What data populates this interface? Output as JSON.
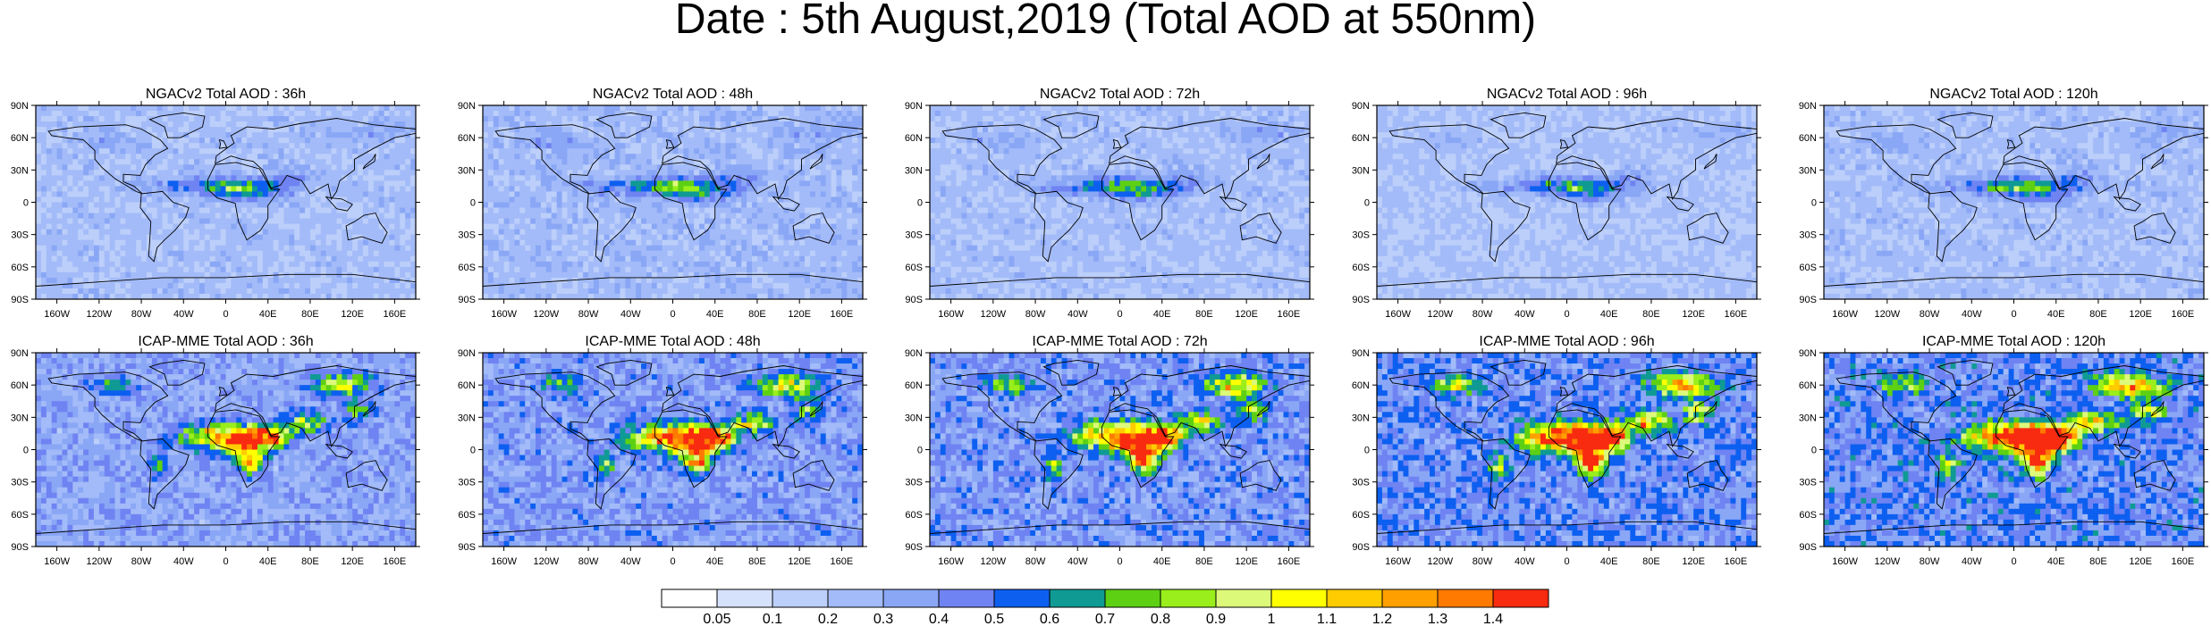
{
  "title": "Date : 5th August,2019 (Total AOD at 550nm)",
  "rows": [
    {
      "model": "NGACv2",
      "panels": [
        {
          "title": "NGACv2 Total AOD : 36h",
          "lead": "36h",
          "intensity": 0.55
        },
        {
          "title": "NGACv2 Total AOD : 48h",
          "lead": "48h",
          "intensity": 0.6
        },
        {
          "title": "NGACv2 Total AOD : 72h",
          "lead": "72h",
          "intensity": 0.55
        },
        {
          "title": "NGACv2 Total AOD : 96h",
          "lead": "96h",
          "intensity": 0.5
        },
        {
          "title": "NGACv2 Total AOD : 120h",
          "lead": "120h",
          "intensity": 0.55
        }
      ]
    },
    {
      "model": "ICAP-MME",
      "panels": [
        {
          "title": "ICAP-MME Total AOD : 36h",
          "lead": "36h",
          "intensity": 0.85
        },
        {
          "title": "ICAP-MME Total AOD : 48h",
          "lead": "48h",
          "intensity": 0.95
        },
        {
          "title": "ICAP-MME Total AOD : 72h",
          "lead": "72h",
          "intensity": 1.0
        },
        {
          "title": "ICAP-MME Total AOD : 96h",
          "lead": "96h",
          "intensity": 1.1
        },
        {
          "title": "ICAP-MME Total AOD : 120h",
          "lead": "120h",
          "intensity": 1.15
        }
      ]
    }
  ],
  "lat_ticks": [
    "90N",
    "60N",
    "30N",
    "0",
    "30S",
    "60S",
    "90S"
  ],
  "lon_ticks": [
    "160W",
    "120W",
    "80W",
    "40W",
    "0",
    "40E",
    "80E",
    "120E",
    "160E"
  ],
  "colorbar": {
    "labels": [
      "0.05",
      "0.1",
      "0.2",
      "0.3",
      "0.4",
      "0.5",
      "0.6",
      "0.7",
      "0.8",
      "0.9",
      "1",
      "1.1",
      "1.2",
      "1.3",
      "1.4"
    ],
    "colors": [
      "#ffffff",
      "#d6e2fb",
      "#bccffa",
      "#a3bbf8",
      "#8aa7f6",
      "#6f83f2",
      "#0d5ff0",
      "#0f9a94",
      "#5dd013",
      "#99ee1b",
      "#ddf97a",
      "#ffff00",
      "#ffcc00",
      "#ffa000",
      "#ff7a00",
      "#f82a10"
    ]
  }
}
